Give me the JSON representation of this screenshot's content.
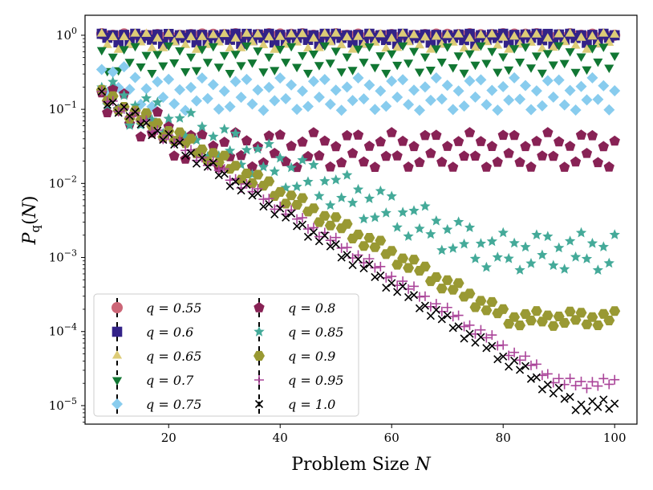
{
  "chart_data": {
    "type": "scatter",
    "xlabel": "Problem Size N",
    "ylabel": "P_q(N)",
    "xlim": [
      5,
      104
    ],
    "ylog": true,
    "ylim_exp": [
      -5.25,
      0.27
    ],
    "xticks": [
      20,
      40,
      60,
      80,
      100
    ],
    "yticks": [
      0,
      -1,
      -2,
      -3,
      -4,
      -5
    ],
    "x_range": [
      8,
      100
    ],
    "legend": {
      "placement": "lower-left",
      "columns": 2
    },
    "series": [
      {
        "name": "q = 0.55",
        "marker": "circle",
        "color": "#cc6677",
        "start": 0.6,
        "slope": 0.004,
        "floor": 1.0,
        "zig": 0.05
      },
      {
        "name": "q = 0.6",
        "marker": "square",
        "color": "#332288",
        "start": 0.32,
        "slope": 0.01,
        "floor": 0.97,
        "zig": 0.12
      },
      {
        "name": "q = 0.65",
        "marker": "triangle-up",
        "color": "#ddcc77",
        "start": 0.32,
        "slope": 0.012,
        "floor": 0.85,
        "zig": 0.15
      },
      {
        "name": "q = 0.7",
        "marker": "triangle-down",
        "color": "#117733",
        "start": 0.3,
        "slope": 0.02,
        "floor": 0.48,
        "zig": 0.22
      },
      {
        "name": "q = 0.75",
        "marker": "diamond",
        "color": "#88ccee",
        "start": 0.3,
        "slope": 0.03,
        "floor": 0.16,
        "zig": 0.26
      },
      {
        "name": "q = 0.8",
        "marker": "pentagon",
        "color": "#882255",
        "start": 0.15,
        "slope": 0.045,
        "floor": 0.028,
        "zig": 0.28
      },
      {
        "name": "q = 0.85",
        "marker": "star",
        "color": "#44aa99",
        "start": 0.15,
        "slope": 0.03,
        "floor": 0.0012,
        "zig": 0.3
      },
      {
        "name": "q = 0.9",
        "marker": "hexagon",
        "color": "#999933",
        "start": 0.15,
        "slope": 0.041,
        "floor": 0.00015,
        "zig": 0.12
      },
      {
        "name": "q = 0.95",
        "marker": "plus",
        "color": "#aa4499",
        "start": 0.15,
        "slope": 0.047,
        "floor": 2e-05,
        "zig": 0.08
      },
      {
        "name": "q = 1.0",
        "marker": "x",
        "color": "#000000",
        "start": 0.15,
        "slope": 0.049,
        "floor": 1e-05,
        "zig": 0.1
      }
    ]
  }
}
